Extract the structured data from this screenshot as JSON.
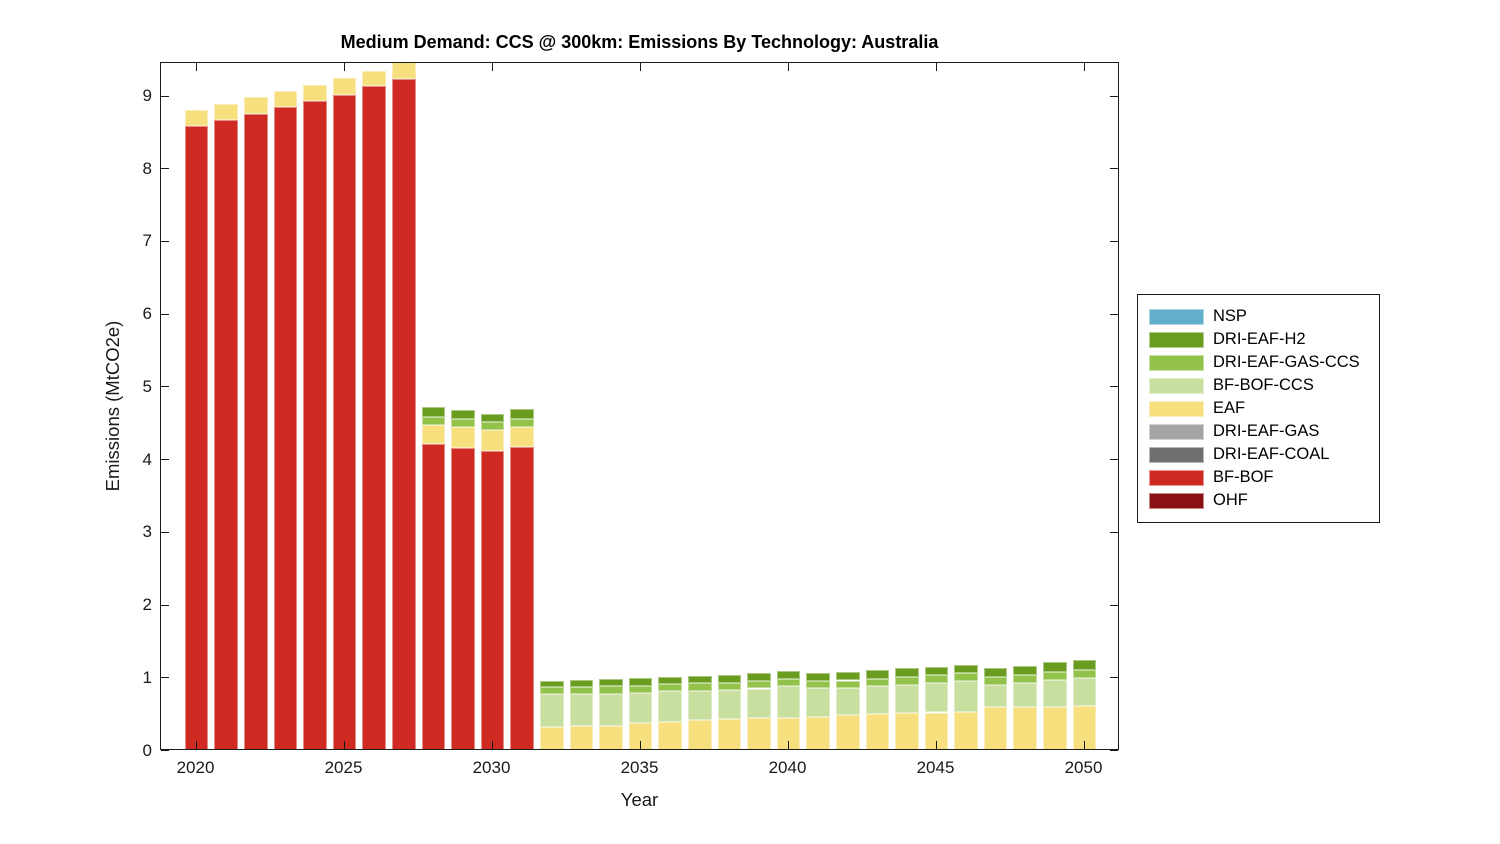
{
  "title": "Medium Demand: CCS @ 300km: Emissions By Technology: Australia",
  "chart_data": {
    "type": "bar",
    "stacked": true,
    "title": "Medium Demand: CCS @ 300km: Emissions By Technology: Australia",
    "xlabel": "Year",
    "ylabel": "Emissions (MtCO2e)",
    "xlim": [
      2018.8,
      2051.2
    ],
    "ylim": [
      0,
      9.46
    ],
    "xticks": [
      2020,
      2025,
      2030,
      2035,
      2040,
      2045,
      2050
    ],
    "yticks": [
      0,
      1,
      2,
      3,
      4,
      5,
      6,
      7,
      8,
      9
    ],
    "grid": false,
    "legend_position": "outside-right",
    "bar_width_years": 0.8,
    "x": [
      2020,
      2021,
      2022,
      2023,
      2024,
      2025,
      2026,
      2027,
      2028,
      2029,
      2030,
      2031,
      2032,
      2033,
      2034,
      2035,
      2036,
      2037,
      2038,
      2039,
      2040,
      2041,
      2042,
      2043,
      2044,
      2045,
      2046,
      2047,
      2048,
      2049,
      2050
    ],
    "series": [
      {
        "name": "OHF",
        "color": "#8A1013",
        "values": [
          0,
          0,
          0,
          0,
          0,
          0,
          0,
          0,
          0,
          0,
          0,
          0,
          0,
          0,
          0,
          0,
          0,
          0,
          0,
          0,
          0,
          0,
          0,
          0,
          0,
          0,
          0,
          0,
          0,
          0,
          0
        ]
      },
      {
        "name": "BF-BOF",
        "color": "#CF2A22",
        "values": [
          8.6,
          8.68,
          8.76,
          8.85,
          8.94,
          9.02,
          9.14,
          9.24,
          4.22,
          4.17,
          4.12,
          4.18,
          0,
          0,
          0,
          0,
          0,
          0,
          0,
          0,
          0,
          0,
          0,
          0,
          0,
          0,
          0,
          0,
          0,
          0,
          0
        ]
      },
      {
        "name": "DRI-EAF-COAL",
        "color": "#6F6F6F",
        "values": [
          0,
          0,
          0,
          0,
          0,
          0,
          0,
          0,
          0,
          0,
          0,
          0,
          0,
          0,
          0,
          0,
          0,
          0,
          0,
          0,
          0,
          0,
          0,
          0,
          0,
          0,
          0,
          0,
          0,
          0,
          0
        ]
      },
      {
        "name": "DRI-EAF-GAS",
        "color": "#A5A5A5",
        "values": [
          0,
          0,
          0,
          0,
          0,
          0,
          0,
          0,
          0,
          0,
          0,
          0,
          0,
          0,
          0,
          0,
          0,
          0,
          0,
          0,
          0,
          0,
          0,
          0,
          0,
          0,
          0,
          0,
          0,
          0,
          0
        ]
      },
      {
        "name": "EAF",
        "color": "#F8DF7E",
        "values": [
          0.22,
          0.22,
          0.23,
          0.22,
          0.22,
          0.23,
          0.21,
          0.23,
          0.26,
          0.28,
          0.3,
          0.28,
          0.33,
          0.34,
          0.35,
          0.38,
          0.4,
          0.43,
          0.44,
          0.45,
          0.46,
          0.47,
          0.5,
          0.51,
          0.52,
          0.53,
          0.54,
          0.6,
          0.61,
          0.61,
          0.62
        ]
      },
      {
        "name": "BF-BOF-CCS",
        "color": "#C8DF9F",
        "values": [
          0,
          0,
          0,
          0,
          0,
          0,
          0,
          0,
          0,
          0,
          0,
          0,
          0.45,
          0.44,
          0.44,
          0.42,
          0.42,
          0.4,
          0.4,
          0.41,
          0.43,
          0.4,
          0.37,
          0.38,
          0.39,
          0.4,
          0.42,
          0.31,
          0.33,
          0.37,
          0.39
        ]
      },
      {
        "name": "DRI-EAF-GAS-CCS",
        "color": "#93C24A",
        "values": [
          0,
          0,
          0,
          0,
          0,
          0,
          0,
          0,
          0.12,
          0.11,
          0.1,
          0.1,
          0.1,
          0.1,
          0.1,
          0.1,
          0.1,
          0.1,
          0.1,
          0.1,
          0.1,
          0.1,
          0.1,
          0.1,
          0.11,
          0.11,
          0.11,
          0.11,
          0.11,
          0.11,
          0.11
        ]
      },
      {
        "name": "DRI-EAF-H2",
        "color": "#6A9C1F",
        "values": [
          0,
          0,
          0,
          0,
          0,
          0,
          0,
          0,
          0.13,
          0.13,
          0.11,
          0.14,
          0.09,
          0.1,
          0.1,
          0.1,
          0.1,
          0.1,
          0.11,
          0.11,
          0.11,
          0.11,
          0.12,
          0.12,
          0.12,
          0.12,
          0.12,
          0.12,
          0.12,
          0.13,
          0.13
        ]
      },
      {
        "name": "NSP",
        "color": "#61AFC8",
        "values": [
          0,
          0,
          0,
          0,
          0,
          0,
          0,
          0,
          0,
          0,
          0,
          0,
          0,
          0,
          0,
          0,
          0,
          0,
          0,
          0,
          0,
          0,
          0,
          0,
          0,
          0,
          0,
          0,
          0,
          0,
          0
        ]
      }
    ],
    "legend": [
      "NSP",
      "DRI-EAF-H2",
      "DRI-EAF-GAS-CCS",
      "BF-BOF-CCS",
      "EAF",
      "DRI-EAF-GAS",
      "DRI-EAF-COAL",
      "BF-BOF",
      "OHF"
    ]
  }
}
